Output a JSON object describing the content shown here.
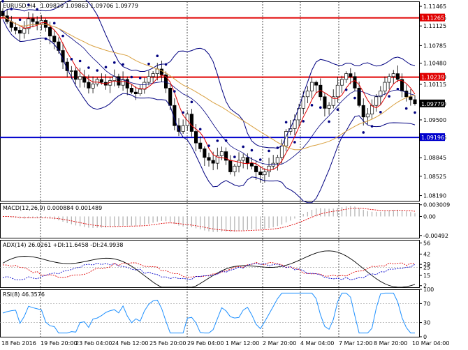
{
  "main": {
    "symbol_label": "EURUSD,H4",
    "ohlc_text": "1.09820 1.09863 1.09706 1.09779",
    "price_ticks": [
      "1.11465",
      "1.11265",
      "1.11125",
      "1.10785",
      "1.10480",
      "1.10239",
      "1.10115",
      "1.09779",
      "1.09500",
      "1.09196",
      "1.08845",
      "1.08525",
      "1.08190"
    ],
    "hlines": [
      {
        "price": 1.11265,
        "label": "1.11265",
        "color": "#e00000"
      },
      {
        "price": 1.10239,
        "label": "1.10239",
        "color": "#e00000"
      },
      {
        "price": 1.09196,
        "label": "1.09196",
        "color": "#0000cc"
      }
    ],
    "current_price": "1.09779",
    "ylim": [
      1.081,
      1.1155
    ]
  },
  "macd": {
    "label": "MACD(12,26,9) 0.000884 0.001489",
    "ticks": [
      "0.003009",
      "0.00",
      "-0.00492"
    ],
    "ylim": [
      -0.0055,
      0.0035
    ]
  },
  "adx": {
    "label": "ADX(14) 26.0261 +DI:11.6458 -DI:24.9938",
    "ticks": [
      "56",
      "42",
      "29",
      "25",
      "15",
      "2"
    ],
    "ylim": [
      0,
      60
    ]
  },
  "rsi": {
    "label": "RSI(8) 46.3576",
    "ticks": [
      "100",
      "70",
      "30",
      "0"
    ],
    "ylim": [
      0,
      100
    ]
  },
  "x_labels": [
    "18 Feb 2016",
    "19 Feb 20:00",
    "23 Feb 04:00",
    "24 Feb 12:00",
    "25 Feb 20:00",
    "29 Feb 04:00",
    "1 Mar 12:00",
    "2 Mar 20:00",
    "4 Mar 04:00",
    "7 Mar 12:00",
    "8 Mar 20:00",
    "10 Mar 04:00"
  ],
  "colors": {
    "bull": "#ffffff",
    "bear": "#000000",
    "bollinger": "#000080",
    "ma_fast": "#e00000",
    "ma_slow": "#d9a040",
    "sar": "#000080",
    "macd_hist": "#b0b0b0",
    "macd_signal": "#e00000",
    "adx": "#000000",
    "plus_di": "#e00000",
    "minus_di": "#0000cc",
    "rsi": "#1e90ff"
  },
  "chart_data": {
    "type": "candlestick",
    "series": [
      {
        "name": "EURUSD,H4",
        "close": [
          1.113,
          1.112,
          1.111,
          1.1105,
          1.11,
          1.1108,
          1.1125,
          1.112,
          1.1115,
          1.1122,
          1.111,
          1.1095,
          1.1085,
          1.107,
          1.105,
          1.1035,
          1.1035,
          1.102,
          1.1025,
          1.1015,
          1.1005,
          1.1012,
          1.102,
          1.1015,
          1.101,
          1.1018,
          1.1025,
          1.101,
          1.102,
          1.1005,
          1.0998,
          1.0995,
          1.1003,
          1.1015,
          1.1025,
          1.103,
          1.1038,
          1.1028,
          1.1005,
          1.0975,
          1.094,
          1.093,
          1.094,
          1.096,
          1.093,
          1.091,
          1.09,
          1.0885,
          1.088,
          1.0875,
          1.0888,
          1.0895,
          1.088,
          1.086,
          1.087,
          1.088,
          1.0885,
          1.0875,
          1.087,
          1.086,
          1.0855,
          1.086,
          1.087,
          1.0875,
          1.0885,
          1.0905,
          1.093,
          1.0935,
          1.095,
          1.097,
          1.099,
          1.1,
          1.1015,
          1.101,
          1.099,
          1.097,
          1.0975,
          1.099,
          1.101,
          1.102,
          1.103,
          1.1025,
          1.1005,
          1.0975,
          1.0955,
          1.096,
          1.0975,
          1.099,
          1.1,
          1.1015,
          1.1025,
          1.103,
          1.102,
          1.1,
          1.099,
          1.0985,
          1.0978
        ]
      },
      {
        "name": "Bollinger upper",
        "values": []
      },
      {
        "name": "Bollinger lower",
        "values": []
      }
    ],
    "ylim": [
      1.081,
      1.1155
    ],
    "xlabel": "",
    "ylabel": ""
  }
}
